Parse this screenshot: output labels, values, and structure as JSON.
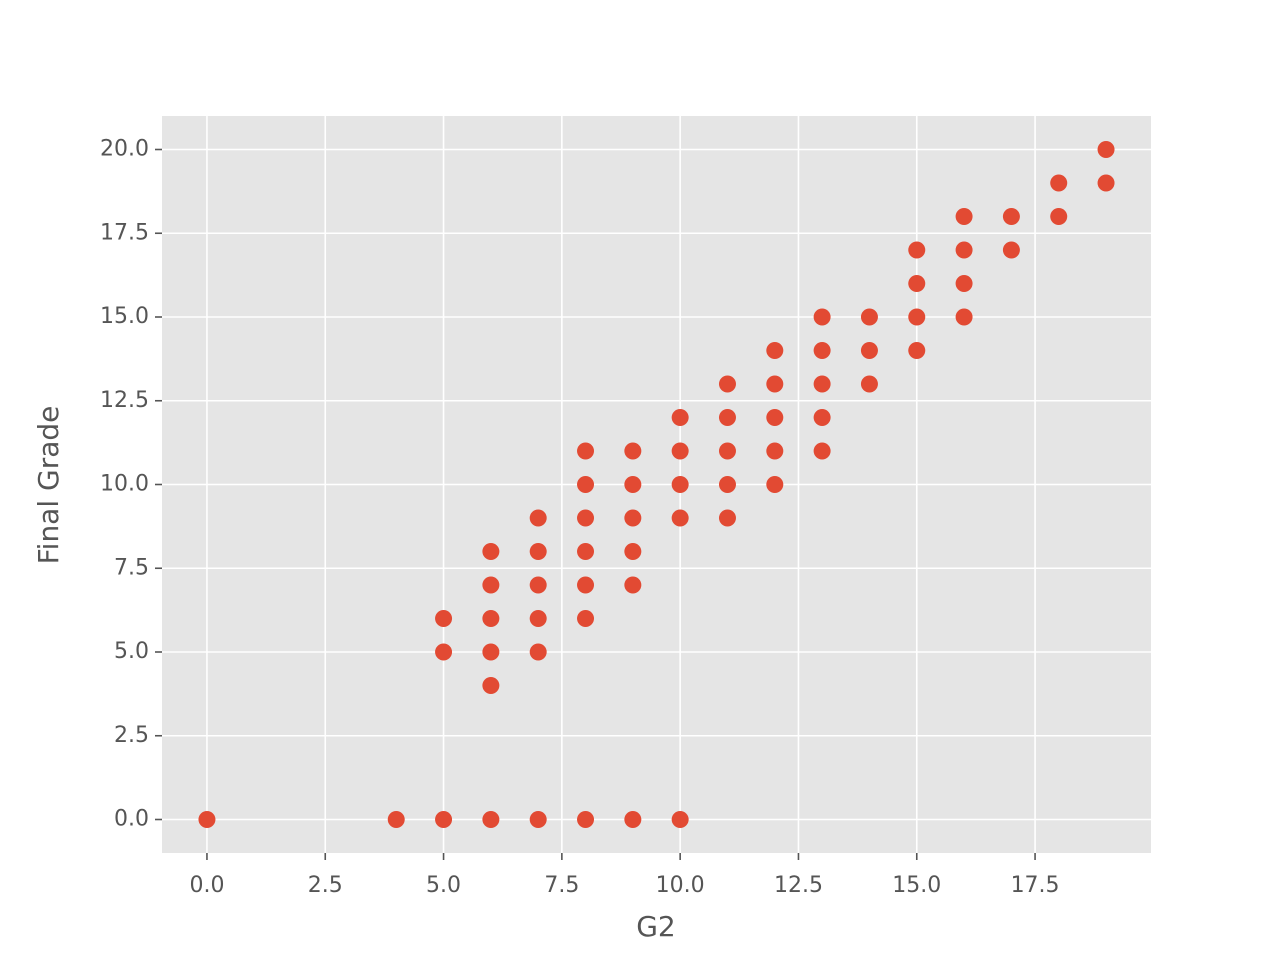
{
  "chart_data": {
    "type": "scatter",
    "xlabel": "G2",
    "ylabel": "Final Grade",
    "x": [
      0,
      4,
      5,
      5,
      5,
      6,
      6,
      6,
      6,
      6,
      6,
      7,
      7,
      7,
      7,
      7,
      7,
      8,
      8,
      8,
      8,
      8,
      8,
      8,
      9,
      9,
      9,
      9,
      9,
      9,
      10,
      10,
      10,
      10,
      10,
      11,
      11,
      11,
      11,
      11,
      12,
      12,
      12,
      12,
      12,
      13,
      13,
      13,
      13,
      13,
      14,
      14,
      14,
      15,
      15,
      15,
      15,
      16,
      16,
      16,
      16,
      17,
      17,
      18,
      18,
      19,
      19
    ],
    "y": [
      0,
      0,
      0,
      5,
      6,
      0,
      4,
      5,
      6,
      7,
      8,
      0,
      5,
      6,
      7,
      8,
      9,
      0,
      6,
      7,
      8,
      9,
      10,
      11,
      0,
      7,
      8,
      9,
      10,
      11,
      0,
      9,
      10,
      11,
      12,
      9,
      10,
      11,
      12,
      13,
      10,
      11,
      12,
      13,
      14,
      11,
      12,
      13,
      14,
      15,
      13,
      14,
      15,
      14,
      15,
      16,
      17,
      15,
      16,
      17,
      18,
      17,
      18,
      18,
      19,
      19,
      20
    ],
    "color": "#e24a33",
    "xlim": [
      -0.95,
      19.95
    ],
    "ylim": [
      -1,
      21
    ],
    "xticks": [
      {
        "value": 0,
        "label": "0.0"
      },
      {
        "value": 2.5,
        "label": "2.5"
      },
      {
        "value": 5,
        "label": "5.0"
      },
      {
        "value": 7.5,
        "label": "7.5"
      },
      {
        "value": 10,
        "label": "10.0"
      },
      {
        "value": 12.5,
        "label": "12.5"
      },
      {
        "value": 15,
        "label": "15.0"
      },
      {
        "value": 17.5,
        "label": "17.5"
      }
    ],
    "yticks": [
      {
        "value": 0,
        "label": "0.0"
      },
      {
        "value": 2.5,
        "label": "2.5"
      },
      {
        "value": 5,
        "label": "5.0"
      },
      {
        "value": 7.5,
        "label": "7.5"
      },
      {
        "value": 10,
        "label": "10.0"
      },
      {
        "value": 12.5,
        "label": "12.5"
      },
      {
        "value": 15,
        "label": "15.0"
      },
      {
        "value": 17.5,
        "label": "17.5"
      },
      {
        "value": 20,
        "label": "20.0"
      }
    ],
    "grid": true
  }
}
